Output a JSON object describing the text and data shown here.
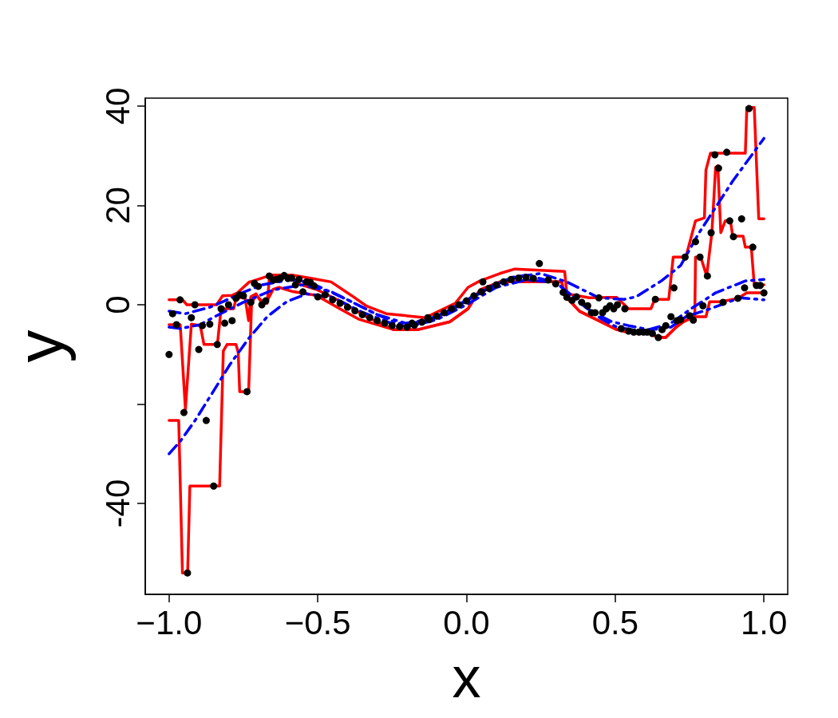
{
  "chart_data": {
    "type": "scatter",
    "xlabel": "x",
    "ylabel": "y",
    "xlim": [
      -1.08,
      1.08
    ],
    "ylim": [
      -58.3,
      41.6
    ],
    "xticks": [
      {
        "value": -1,
        "label": "−1.0"
      },
      {
        "value": -0.5,
        "label": "−0.5"
      },
      {
        "value": 0,
        "label": "0.0"
      },
      {
        "value": 0.5,
        "label": "0.5"
      },
      {
        "value": 1,
        "label": "1.0"
      }
    ],
    "yticks": [
      -40,
      {
        "value": -20,
        "label": null
      },
      0,
      20,
      40
    ],
    "grid": false,
    "series": [
      {
        "type": "line",
        "color": "#ff0000",
        "line_style": "solid",
        "marker": "none",
        "x": [
          -1,
          -0.955,
          -0.94,
          -0.84,
          -0.82,
          -0.7875,
          -0.77,
          -0.73,
          -0.7175,
          -0.655,
          -0.5875,
          -0.52,
          -0.455,
          -0.3875,
          -0.3375,
          -0.27,
          -0.1375,
          -0.0375,
          0.005,
          0.045,
          0.1125,
          0.1625,
          0.33,
          0.3375,
          0.4125,
          0.505,
          0.545,
          0.62,
          0.633,
          0.68,
          0.695,
          0.7375,
          0.77,
          0.8,
          0.805,
          0.82,
          0.9375,
          0.9425,
          0.9675,
          0.9825,
          1.0
        ],
        "values": [
          1,
          1,
          0,
          0,
          1.8,
          1.9,
          2.4,
          4.6,
          4.8,
          6.0,
          6.0,
          5.3,
          4.6,
          1.9,
          -0.2,
          -1.8,
          -2.6,
          0.3,
          3.5,
          4.8,
          6.3,
          7.2,
          6.7,
          2.2,
          1.4,
          1.5,
          -0.8,
          -0.8,
          1.1,
          1.1,
          9.6,
          9.6,
          16.9,
          17.5,
          27.1,
          30.5,
          30.5,
          39.7,
          39.7,
          17.3,
          17.3
        ]
      },
      {
        "type": "line",
        "color": "#ff0000",
        "line_style": "solid",
        "marker": "none",
        "x": [
          -1,
          -0.9625,
          -0.945,
          -0.925,
          -0.895,
          -0.8825,
          -0.8375,
          -0.825,
          -0.7825,
          -0.775,
          -0.745,
          -0.7325,
          -0.725,
          -0.7075,
          -0.6875,
          -0.67,
          -0.6625,
          -0.6,
          -0.57,
          -0.505,
          -0.42,
          -0.3375,
          -0.245,
          -0.1625,
          -0.055,
          0.005,
          0.045,
          0.1125,
          0.195,
          0.32,
          0.33,
          0.38,
          0.505,
          0.545,
          0.62,
          0.645,
          0.67,
          0.705,
          0.73,
          0.7675,
          0.77,
          0.7875,
          0.8075,
          0.825,
          0.8375,
          0.845,
          0.855,
          0.87,
          0.8875,
          0.895,
          0.93,
          0.9375,
          0.9575,
          0.9675,
          1.0
        ],
        "values": [
          -4,
          -4,
          -21,
          -3.9,
          -4.2,
          -8,
          -8,
          -0.8,
          -0.8,
          1.3,
          1.6,
          -3.2,
          1.6,
          2.2,
          0.3,
          0.3,
          5.6,
          5.8,
          4.3,
          3.1,
          0.6,
          -2.4,
          -5,
          -5,
          -3.4,
          -0.8,
          3.0,
          4.6,
          4.6,
          4.6,
          1.9,
          -1.3,
          -5,
          -5.6,
          -5.8,
          -6.6,
          -6.6,
          -4.5,
          -3.4,
          -2.4,
          9.6,
          9.6,
          5.8,
          14.5,
          27.6,
          28,
          14.5,
          16.9,
          16.9,
          13.8,
          13.8,
          11.6,
          11.6,
          4.0,
          4.0
        ]
      },
      {
        "type": "line",
        "color": "#ff0000",
        "line_style": "solid",
        "marker": "none",
        "x": [
          -1,
          -0.9675,
          -0.955,
          -0.9375,
          -0.93,
          -0.83,
          -0.8175,
          -0.805,
          -0.775,
          -0.7675,
          -0.7625,
          -0.7325,
          -0.7225,
          -0.7075,
          -0.68,
          -0.67,
          -0.65,
          -0.63,
          -0.5875,
          -0.505,
          -0.42,
          -0.3625,
          -0.245,
          -0.1625,
          -0.055,
          0.005,
          0.045,
          0.1125,
          0.32,
          0.33,
          0.38,
          0.505,
          0.545,
          0.62,
          0.645,
          0.67,
          0.705,
          0.73,
          0.7625,
          0.805,
          0.8175,
          0.855,
          0.9125,
          0.9425,
          1.0
        ],
        "values": [
          -23.3,
          -23.3,
          -54,
          -54,
          -36.5,
          -36.5,
          -9.3,
          -8,
          -8,
          -9.6,
          -17.5,
          -17.5,
          0.3,
          1.9,
          0.3,
          0.8,
          3.1,
          3.5,
          2.7,
          1.9,
          -1,
          -2.9,
          -5,
          -5,
          -3.4,
          -0.8,
          3.0,
          4.6,
          4.6,
          1.9,
          -1.3,
          -5,
          -5.6,
          -5.8,
          -6.6,
          -6.6,
          -4.5,
          -3.4,
          -2.4,
          -2.4,
          0.6,
          0.6,
          1.3,
          2.4,
          2.4
        ]
      },
      {
        "type": "line",
        "color": "#0000ff",
        "line_style": "dashed",
        "marker": "none",
        "x": [
          -1,
          -0.9625,
          -0.9125,
          -0.855,
          -0.795,
          -0.73,
          -0.67,
          -0.605,
          -0.5375,
          -0.45,
          -0.35,
          -0.25,
          -0.15,
          -0.05,
          0.05,
          0.15,
          0.25,
          0.3375,
          0.445,
          0.53,
          0.57,
          0.655,
          0.72,
          0.78,
          0.8375,
          0.895,
          0.9575,
          1.0
        ],
        "values": [
          -30,
          -27.5,
          -23.3,
          -17.8,
          -12,
          -6.6,
          -2.4,
          0.6,
          2.2,
          1.5,
          -1.5,
          -3.8,
          -3.5,
          -1,
          2.5,
          5.5,
          6.3,
          4.6,
          1.4,
          1.1,
          1.6,
          4.8,
          7.9,
          14.3,
          19.6,
          24.9,
          30.0,
          33.5
        ]
      },
      {
        "type": "line",
        "color": "#0000ff",
        "line_style": "dashed",
        "marker": "none",
        "x": [
          -1,
          -0.945,
          -0.8625,
          -0.8125,
          -0.755,
          -0.6875,
          -0.5875,
          -0.52,
          -0.4,
          -0.3,
          -0.2,
          -0.1,
          0,
          0.1,
          0.2,
          0.3,
          0.42,
          0.4875,
          0.545,
          0.6125,
          0.6875,
          0.755,
          0.8375,
          0.9375,
          1.0
        ],
        "values": [
          -1.3,
          -1.8,
          -0.5,
          0.8,
          2.4,
          4.0,
          5.1,
          4.3,
          1.0,
          -2.0,
          -3.8,
          -2.5,
          1.0,
          4.2,
          6.0,
          4.5,
          -1.3,
          -3.4,
          -4.2,
          -5.0,
          -3.7,
          -0.8,
          2.4,
          4.8,
          5.1
        ]
      },
      {
        "type": "line",
        "color": "#0000ff",
        "line_style": "dashed",
        "marker": "none",
        "x": [
          -1,
          -0.9625,
          -0.895,
          -0.85,
          -0.75,
          -0.65,
          -0.55,
          -0.45,
          -0.3,
          -0.2,
          -0.1,
          0,
          0.1,
          0.2,
          0.3,
          0.4,
          0.455,
          0.505,
          0.5875,
          0.6875,
          0.7375,
          0.82,
          0.92,
          0.98,
          1.0
        ],
        "values": [
          -4.5,
          -4.8,
          -4.0,
          -2.5,
          0.5,
          3.0,
          4.0,
          2.5,
          -2.0,
          -4.5,
          -3.0,
          0,
          3.5,
          5.0,
          4.5,
          -0.5,
          -2.9,
          -4.5,
          -5.3,
          -4.5,
          -2.4,
          -0.8,
          1.4,
          1.1,
          1.0
        ]
      },
      {
        "color": "#000000",
        "marker": "circle",
        "x": [
          -1,
          -0.988,
          -0.975,
          -0.963,
          -0.95,
          -0.938,
          -0.925,
          -0.913,
          -0.9,
          -0.888,
          -0.875,
          -0.863,
          -0.85,
          -0.838,
          -0.825,
          -0.813,
          -0.8,
          -0.788,
          -0.775,
          -0.763,
          -0.75,
          -0.738,
          -0.725,
          -0.713,
          -0.7,
          -0.688,
          -0.675,
          -0.663,
          -0.65,
          -0.638,
          -0.625,
          -0.613,
          -0.6,
          -0.588,
          -0.575,
          -0.563,
          -0.55,
          -0.538,
          -0.525,
          -0.513,
          -0.5,
          -0.475,
          -0.45,
          -0.425,
          -0.4,
          -0.375,
          -0.35,
          -0.325,
          -0.3,
          -0.275,
          -0.25,
          -0.225,
          -0.2,
          -0.183,
          -0.175,
          -0.15,
          -0.13,
          -0.125,
          -0.1,
          -0.075,
          -0.05,
          -0.025,
          0,
          0.025,
          0.05,
          0.055,
          0.075,
          0.1,
          0.125,
          0.15,
          0.175,
          0.2,
          0.225,
          0.245,
          0.275,
          0.3,
          0.325,
          0.3375,
          0.355,
          0.37,
          0.3875,
          0.4075,
          0.42,
          0.4325,
          0.445,
          0.4575,
          0.47,
          0.4825,
          0.495,
          0.5075,
          0.52,
          0.5325,
          0.545,
          0.5625,
          0.58,
          0.595,
          0.6075,
          0.625,
          0.635,
          0.645,
          0.6575,
          0.67,
          0.6875,
          0.6975,
          0.7075,
          0.72,
          0.735,
          0.75,
          0.7625,
          0.77,
          0.785,
          0.795,
          0.81,
          0.8225,
          0.835,
          0.8475,
          0.8625,
          0.875,
          0.885,
          0.8975,
          0.9125,
          0.925,
          0.935,
          0.95,
          0.9625,
          0.975,
          0.9875,
          1.0
        ],
        "values": [
          -10.0,
          -1.8,
          -4.0,
          1.0,
          -21.7,
          -54,
          -2.6,
          0,
          -9.0,
          -4.2,
          -23.3,
          -3.9,
          -36.5,
          -8.0,
          -0.8,
          -3.7,
          0,
          -3.2,
          1.3,
          2.0,
          1.8,
          -17.5,
          0.5,
          4.3,
          3.7,
          0,
          0.8,
          5.8,
          5.0,
          5.1,
          5.4,
          5.9,
          5.3,
          5.4,
          4.0,
          5.1,
          2.6,
          4.6,
          4.5,
          3.8,
          1.6,
          2.0,
          1.0,
          0.3,
          -0.5,
          -1.2,
          -2.0,
          -2.6,
          -3.2,
          -3.7,
          -4.2,
          -4.4,
          -4.5,
          -3.7,
          -4.1,
          -3.5,
          -2.6,
          -3.0,
          -2.3,
          -1.6,
          -0.8,
          0,
          0.8,
          1.8,
          2.6,
          4.6,
          3.3,
          4.0,
          4.6,
          5.1,
          5.4,
          5.5,
          5.3,
          8.3,
          5.0,
          4.2,
          2.5,
          1.5,
          0.9,
          1.6,
          0.5,
          -0.2,
          -1.6,
          -1.6,
          1.4,
          -1.6,
          -0.8,
          -0.2,
          -0.8,
          0.0,
          -4.8,
          -0.8,
          -5.3,
          -5.5,
          -5.5,
          -5.5,
          -5.5,
          -5.8,
          1.1,
          -6.6,
          -5.0,
          -4.2,
          -2.4,
          3.4,
          -3.2,
          -3.0,
          9.6,
          -2.2,
          -3.1,
          12.7,
          9.6,
          -0.2,
          5.8,
          14.5,
          30.2,
          27.5,
          0.5,
          30.7,
          16.9,
          13.7,
          1.3,
          17.3,
          3.4,
          39.5,
          11.6,
          3.9,
          3.9,
          2.4
        ]
      }
    ]
  }
}
